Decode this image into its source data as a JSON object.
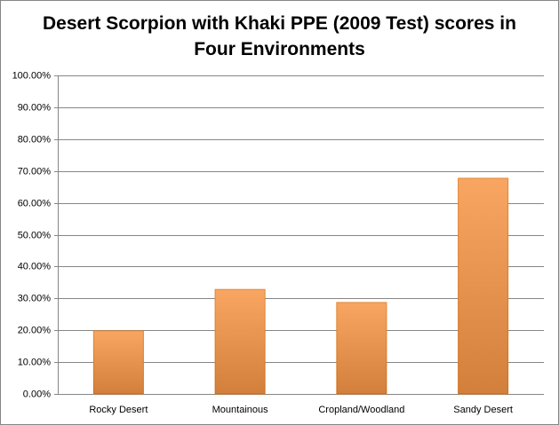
{
  "chart_data": {
    "type": "bar",
    "title": "Desert Scorpion with Khaki PPE (2009 Test) scores in Four Environments",
    "categories": [
      "Rocky Desert",
      "Mountainous",
      "Cropland/Woodland",
      "Sandy Desert"
    ],
    "values": [
      19.8,
      32.8,
      28.7,
      67.7
    ],
    "color": "#f79646",
    "ylim": [
      0,
      100
    ],
    "yticks": [
      {
        "value": 0,
        "label": "0.00%"
      },
      {
        "value": 10,
        "label": "10.00%"
      },
      {
        "value": 20,
        "label": "20.00%"
      },
      {
        "value": 30,
        "label": "30.00%"
      },
      {
        "value": 40,
        "label": "40.00%"
      },
      {
        "value": 50,
        "label": "50.00%"
      },
      {
        "value": 60,
        "label": "60.00%"
      },
      {
        "value": 70,
        "label": "70.00%"
      },
      {
        "value": 80,
        "label": "80.00%"
      },
      {
        "value": 90,
        "label": "90.00%"
      },
      {
        "value": 100,
        "label": "100.00%"
      }
    ],
    "grid": true
  }
}
